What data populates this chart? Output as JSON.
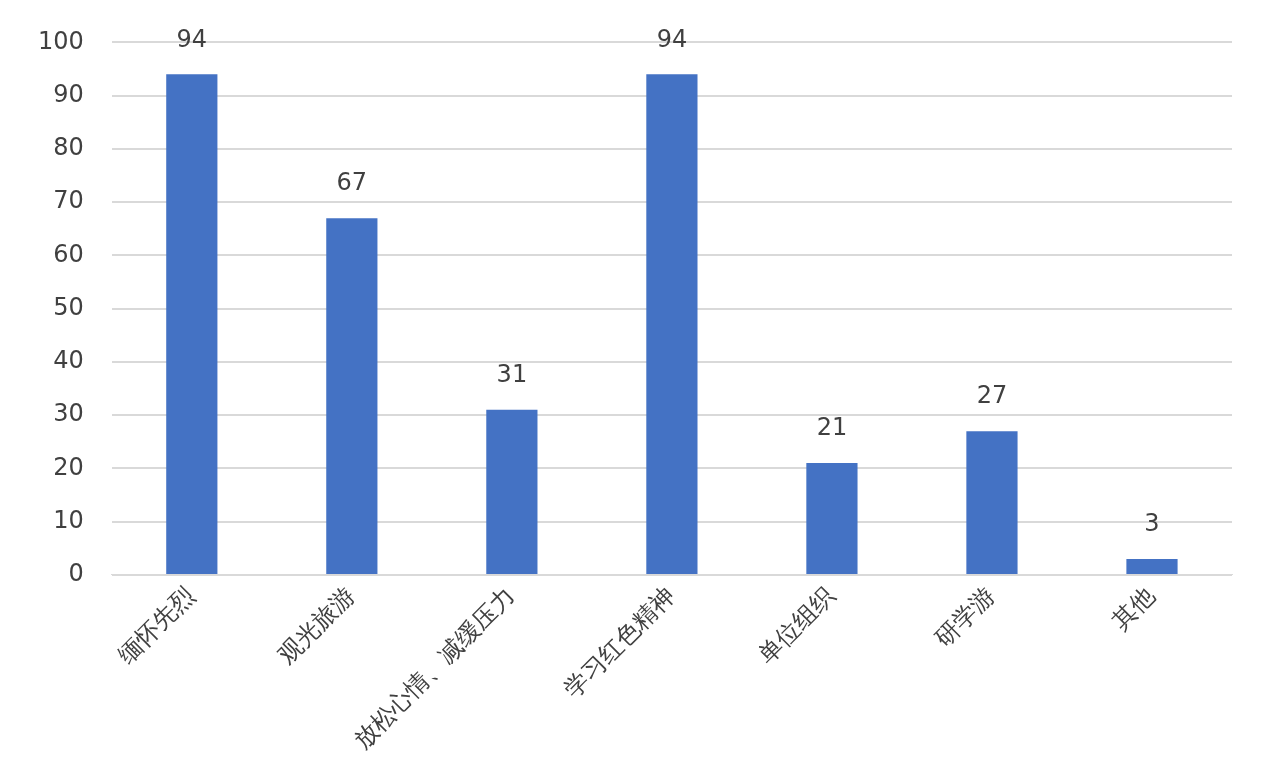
{
  "chart_data": {
    "type": "bar",
    "categories": [
      "缅怀先烈",
      "观光旅游",
      "放松心情、减缓压力",
      "学习红色精神",
      "单位组织",
      "研学游",
      "其他"
    ],
    "values": [
      94,
      67,
      31,
      94,
      21,
      27,
      3
    ],
    "color": "#4472c4",
    "ylim": [
      0,
      100
    ],
    "yticks": [
      0,
      10,
      20,
      30,
      40,
      50,
      60,
      70,
      80,
      90,
      100
    ],
    "grid": "y",
    "data_labels": true
  }
}
